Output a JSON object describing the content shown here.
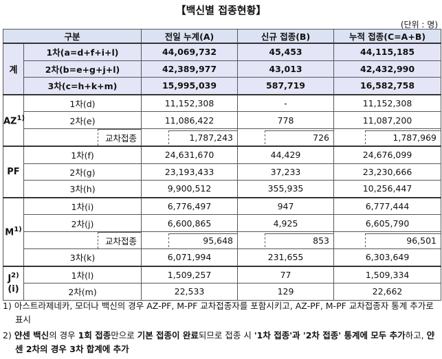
{
  "title": "【백신별 접종현황】",
  "unit": "(단위 : 명)",
  "table": {
    "header": [
      "구분",
      "전일 누계(A)",
      "신규 접종(B)",
      "누적 접종(C=A+B)"
    ],
    "groups": [
      {
        "label": "계",
        "rows": [
          {
            "label": "1차(a=d+f+i+l)",
            "values": [
              "44,069,732",
              "45,453",
              "44,115,185"
            ]
          },
          {
            "label": "2차(b=e+g+j+l)",
            "values": [
              "42,389,977",
              "43,013",
              "42,432,990"
            ]
          },
          {
            "label": "3차(c=h+k+m)",
            "values": [
              "15,995,039",
              "587,719",
              "16,582,758"
            ]
          }
        ]
      },
      {
        "label": "AZ",
        "sup": "1)",
        "rows": [
          {
            "label": "1차(d)",
            "values": [
              "11,152,308",
              "-",
              "11,152,308"
            ]
          },
          {
            "label": "2차(e)",
            "values": [
              "11,086,422",
              "778",
              "11,087,200"
            ],
            "cross": {
              "label": "교차접종",
              "values": [
                "1,787,243",
                "726",
                "1,787,969"
              ]
            }
          }
        ]
      },
      {
        "label": "PF",
        "rows": [
          {
            "label": "1차(f)",
            "values": [
              "24,631,670",
              "44,429",
              "24,676,099"
            ]
          },
          {
            "label": "2차(g)",
            "values": [
              "23,193,433",
              "37,233",
              "23,230,666"
            ]
          },
          {
            "label": "3차(h)",
            "values": [
              "9,900,512",
              "355,935",
              "10,256,447"
            ]
          }
        ]
      },
      {
        "label": "M",
        "sup": "1)",
        "rows": [
          {
            "label": "1차(i)",
            "values": [
              "6,776,497",
              "947",
              "6,777,444"
            ]
          },
          {
            "label": "2차(j)",
            "values": [
              "6,600,865",
              "4,925",
              "6,605,790"
            ],
            "cross": {
              "label": "교차접종",
              "values": [
                "95,648",
                "853",
                "96,501"
              ]
            }
          },
          {
            "label": "3차(k)",
            "values": [
              "6,071,994",
              "231,655",
              "6,303,649"
            ]
          }
        ]
      },
      {
        "label": "J",
        "sup": "2)",
        "sub": "(i)",
        "rows": [
          {
            "label": "1차(l)",
            "values": [
              "1,509,257",
              "77",
              "1,509,334"
            ]
          },
          {
            "label": "2차(m)",
            "values": [
              "22,533",
              "129",
              "22,662"
            ]
          }
        ]
      }
    ]
  },
  "footnotes": [
    {
      "num": "1)",
      "segments": [
        {
          "text": "아스트라제네카, 모더나 백신의 경우 AZ-PF, M-PF 교차접종자를 포함시키고, AZ-PF, M-PF 교차접종자 통계 추가로 표시",
          "bold": false
        }
      ]
    },
    {
      "num": "2)",
      "segments": [
        {
          "text": "얀센 백신",
          "bold": true
        },
        {
          "text": "의 경우 ",
          "bold": false
        },
        {
          "text": "1회 접종",
          "bold": true
        },
        {
          "text": "만으로 ",
          "bold": false
        },
        {
          "text": "기본 접종이 완료",
          "bold": true
        },
        {
          "text": "되므로 접종 시 ",
          "bold": false
        },
        {
          "text": "'1차 접종'과 '2차 접종' 통계에 모두 추가",
          "bold": true
        },
        {
          "text": "하고, ",
          "bold": false
        },
        {
          "text": "얀센 2차의 경우 3차 합계에 추가",
          "bold": true
        }
      ]
    }
  ]
}
